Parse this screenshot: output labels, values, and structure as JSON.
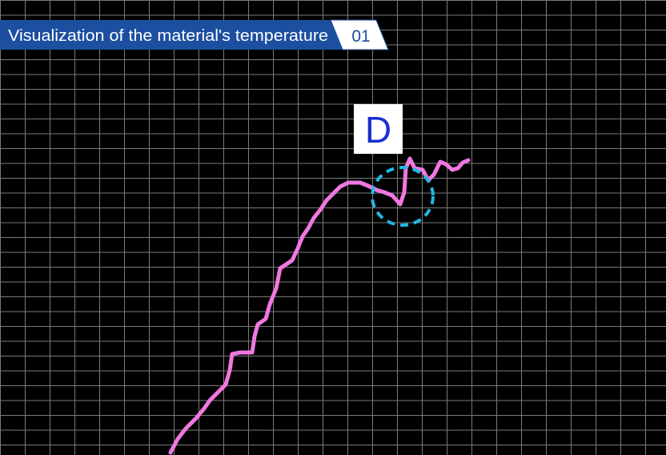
{
  "banner": {
    "title": "Visualization of the material's temperature",
    "number": "01"
  },
  "marker": {
    "label": "D"
  }
}
